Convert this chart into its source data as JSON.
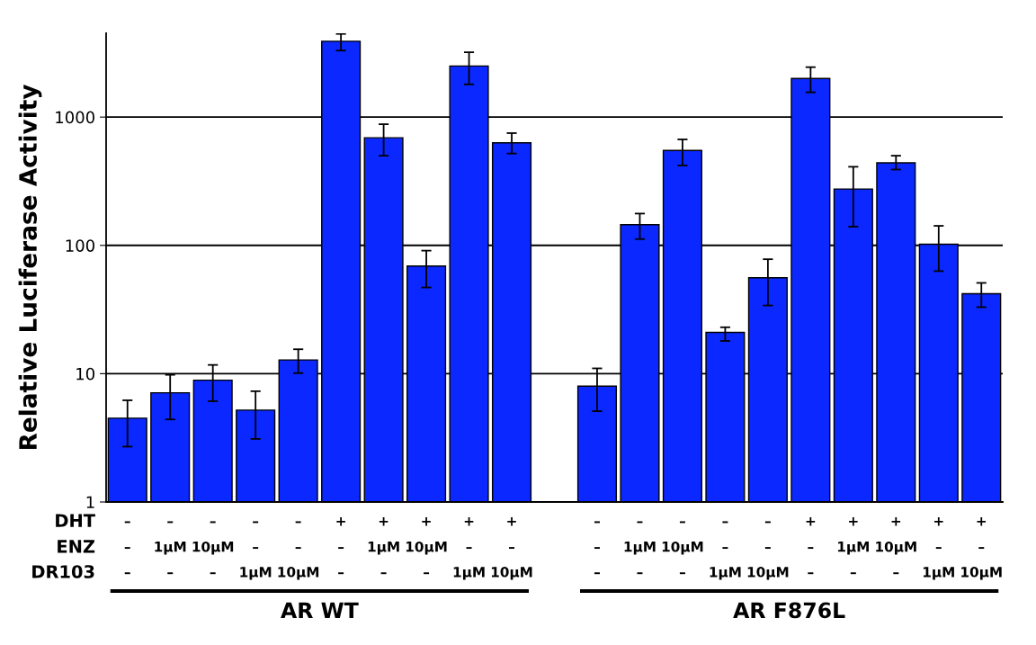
{
  "chart_data": {
    "type": "bar",
    "ylabel": "Relative Luciferase Activity",
    "categories": [
      "–\n–\n–",
      "–\n1μM\n–",
      "–\n10μM\n–",
      "–\n–\n1μM",
      "–\n–\n10μM",
      "+\n–\n–",
      "+\n1μM\n–",
      "+\n10μM\n–",
      "+\n–\n1μM",
      "+\n–\n10μM",
      null,
      "–\n–\n–",
      "–\n1μM\n–",
      "–\n10μM\n–",
      "–\n–\n1μM",
      "–\n–\n10μM",
      "+\n–\n–",
      "+\n1μM\n–",
      "+\n10μM\n–",
      "+\n–\n1μM",
      "+\n–\n10μM"
    ],
    "values": [
      4.5,
      7.1,
      8.9,
      5.2,
      12.8,
      3900,
      690,
      69,
      2500,
      630,
      null,
      8,
      145,
      550,
      21,
      56,
      2000,
      275,
      440,
      102,
      42
    ],
    "errors": [
      [
        2.7,
        6.2
      ],
      [
        4.4,
        9.8
      ],
      [
        6.1,
        11.7
      ],
      [
        3.1,
        7.3
      ],
      [
        10.1,
        15.5
      ],
      [
        3300,
        4450
      ],
      [
        500,
        880
      ],
      [
        47,
        91
      ],
      [
        1800,
        3200
      ],
      [
        520,
        750
      ],
      null,
      [
        5.1,
        11
      ],
      [
        112,
        177
      ],
      [
        420,
        670
      ],
      [
        18,
        23
      ],
      [
        34,
        78
      ],
      [
        1560,
        2450
      ],
      [
        140,
        410
      ],
      [
        390,
        500
      ],
      [
        63,
        142
      ],
      [
        33,
        51
      ]
    ],
    "color": "#0a28ff",
    "log": true,
    "ylim": [
      1,
      4500
    ],
    "yticks": [
      1,
      10,
      100,
      1000
    ],
    "grid": "y",
    "annotations": [
      "DHT",
      "ENZ",
      "DR103",
      "AR WT",
      "AR F876L"
    ]
  }
}
